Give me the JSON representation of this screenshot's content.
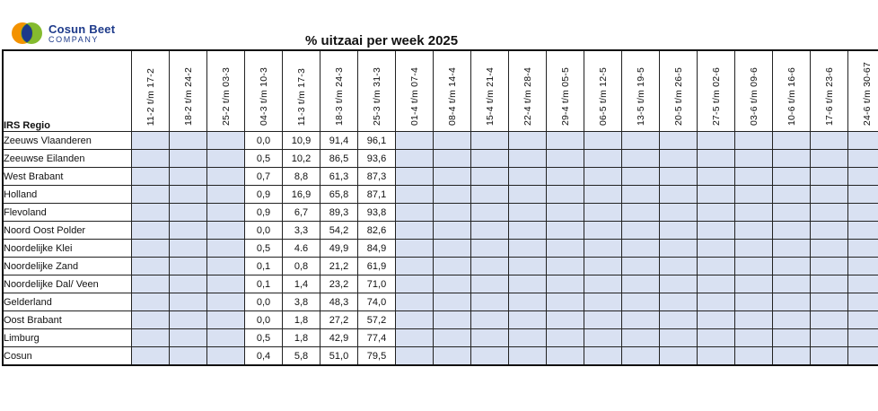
{
  "logo": {
    "name": "Cosun Beet",
    "sub": "COMPANY"
  },
  "title": "% uitzaai per week 2025",
  "table": {
    "corner_label": "IRS Regio",
    "columns": [
      "11-2 t/m 17-2",
      "18-2 t/m 24-2",
      "25-2 t/m 03-3",
      "04-3 t/m 10-3",
      "11-3 t/m 17-3",
      "18-3 t/m 24-3",
      "25-3 t/m 31-3",
      "01-4 t/m 07-4",
      "08-4 t/m 14-4",
      "15-4 t/m 21-4",
      "22-4 t/m 28-4",
      "29-4 t/m 05-5",
      "06-5 t/m 12-5",
      "13-5 t/m 19-5",
      "20-5 t/m 26-5",
      "27-5 t/m 02-6",
      "03-6 t/m 09-6",
      "10-6 t/m 16-6",
      "17-6 t/m 23-6",
      "24-6 t/m 30-67"
    ],
    "rows": [
      {
        "region": "Zeeuws Vlaanderen",
        "values": [
          "",
          "",
          "",
          "0,0",
          "10,9",
          "91,4",
          "96,1",
          "",
          "",
          "",
          "",
          "",
          "",
          "",
          "",
          "",
          "",
          "",
          "",
          ""
        ]
      },
      {
        "region": "Zeeuwse Eilanden",
        "values": [
          "",
          "",
          "",
          "0,5",
          "10,2",
          "86,5",
          "93,6",
          "",
          "",
          "",
          "",
          "",
          "",
          "",
          "",
          "",
          "",
          "",
          "",
          ""
        ]
      },
      {
        "region": "West Brabant",
        "values": [
          "",
          "",
          "",
          "0,7",
          "8,8",
          "61,3",
          "87,3",
          "",
          "",
          "",
          "",
          "",
          "",
          "",
          "",
          "",
          "",
          "",
          "",
          ""
        ]
      },
      {
        "region": "Holland",
        "values": [
          "",
          "",
          "",
          "0,9",
          "16,9",
          "65,8",
          "87,1",
          "",
          "",
          "",
          "",
          "",
          "",
          "",
          "",
          "",
          "",
          "",
          "",
          ""
        ]
      },
      {
        "region": "Flevoland",
        "values": [
          "",
          "",
          "",
          "0,9",
          "6,7",
          "89,3",
          "93,8",
          "",
          "",
          "",
          "",
          "",
          "",
          "",
          "",
          "",
          "",
          "",
          "",
          ""
        ]
      },
      {
        "region": "Noord Oost Polder",
        "values": [
          "",
          "",
          "",
          "0,0",
          "3,3",
          "54,2",
          "82,6",
          "",
          "",
          "",
          "",
          "",
          "",
          "",
          "",
          "",
          "",
          "",
          "",
          ""
        ]
      },
      {
        "region": "Noordelijke Klei",
        "values": [
          "",
          "",
          "",
          "0,5",
          "4.6",
          "49,9",
          "84,9",
          "",
          "",
          "",
          "",
          "",
          "",
          "",
          "",
          "",
          "",
          "",
          "",
          ""
        ]
      },
      {
        "region": "Noordelijke Zand",
        "values": [
          "",
          "",
          "",
          "0,1",
          "0,8",
          "21,2",
          "61,9",
          "",
          "",
          "",
          "",
          "",
          "",
          "",
          "",
          "",
          "",
          "",
          "",
          ""
        ]
      },
      {
        "region": "Noordelijke Dal/ Veen",
        "values": [
          "",
          "",
          "",
          "0,1",
          "1,4",
          "23,2",
          "71,0",
          "",
          "",
          "",
          "",
          "",
          "",
          "",
          "",
          "",
          "",
          "",
          "",
          ""
        ]
      },
      {
        "region": "Gelderland",
        "values": [
          "",
          "",
          "",
          "0,0",
          "3,8",
          "48,3",
          "74,0",
          "",
          "",
          "",
          "",
          "",
          "",
          "",
          "",
          "",
          "",
          "",
          "",
          ""
        ]
      },
      {
        "region": "Oost Brabant",
        "values": [
          "",
          "",
          "",
          "0,0",
          "1,8",
          "27,2",
          "57,2",
          "",
          "",
          "",
          "",
          "",
          "",
          "",
          "",
          "",
          "",
          "",
          "",
          ""
        ]
      },
      {
        "region": "Limburg",
        "values": [
          "",
          "",
          "",
          "0,5",
          "1,8",
          "42,9",
          "77,4",
          "",
          "",
          "",
          "",
          "",
          "",
          "",
          "",
          "",
          "",
          "",
          "",
          ""
        ]
      },
      {
        "region": "Cosun",
        "values": [
          "",
          "",
          "",
          "0,4",
          "5,8",
          "51,0",
          "79,5",
          "",
          "",
          "",
          "",
          "",
          "",
          "",
          "",
          "",
          "",
          "",
          "",
          ""
        ]
      }
    ],
    "colors": {
      "band": "#d9e1f2",
      "white": "#ffffff",
      "logo_orange": "#f39200",
      "logo_green": "#7ab51d",
      "logo_blue": "#1d3a8a"
    }
  }
}
